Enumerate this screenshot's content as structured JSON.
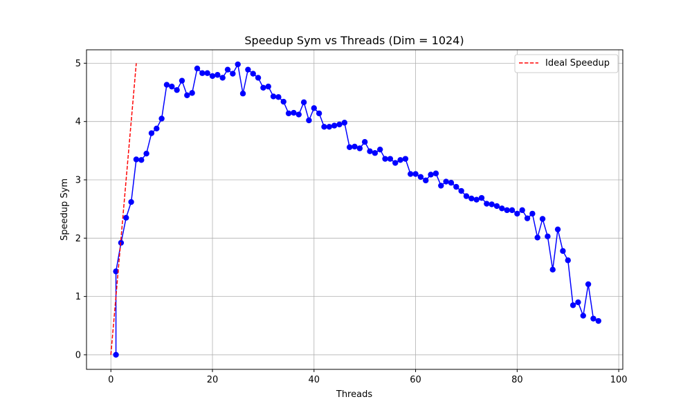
{
  "chart_data": {
    "type": "line",
    "title": "Speedup Sym vs Threads (Dim = 1024)",
    "xlabel": "Threads",
    "ylabel": "Speedup Sym",
    "xlim": [
      -4.8,
      100.8
    ],
    "ylim": [
      -0.25,
      5.23
    ],
    "xticks": [
      0,
      20,
      40,
      60,
      80,
      100
    ],
    "yticks": [
      0,
      1,
      2,
      3,
      4,
      5
    ],
    "grid": true,
    "legend_position": "top-right",
    "colors": {
      "measured": "#0000ff",
      "ideal": "#ff0000"
    },
    "series": [
      {
        "id": "measured",
        "x": [
          1,
          1,
          2,
          3,
          4,
          5,
          6,
          7,
          8,
          9,
          10,
          11,
          12,
          13,
          14,
          15,
          16,
          17,
          18,
          19,
          20,
          21,
          22,
          23,
          24,
          25,
          26,
          27,
          28,
          29,
          30,
          31,
          32,
          33,
          34,
          35,
          36,
          37,
          38,
          39,
          40,
          41,
          42,
          43,
          44,
          45,
          46,
          47,
          48,
          49,
          50,
          51,
          52,
          53,
          54,
          55,
          56,
          57,
          58,
          59,
          60,
          61,
          62,
          63,
          64,
          65,
          66,
          67,
          68,
          69,
          70,
          71,
          72,
          73,
          74,
          75,
          76,
          77,
          78,
          79,
          80,
          81,
          82,
          83,
          84,
          85,
          86,
          87,
          88,
          89,
          90,
          91,
          92,
          93,
          94,
          95,
          96
        ],
        "y": [
          0,
          1.43,
          1.92,
          2.35,
          2.62,
          3.35,
          3.34,
          3.45,
          3.8,
          3.88,
          4.05,
          4.63,
          4.6,
          4.54,
          4.7,
          4.45,
          4.49,
          4.91,
          4.83,
          4.83,
          4.78,
          4.8,
          4.75,
          4.89,
          4.82,
          4.98,
          4.48,
          4.89,
          4.82,
          4.75,
          4.58,
          4.6,
          4.43,
          4.42,
          4.34,
          4.14,
          4.15,
          4.12,
          4.33,
          4.02,
          4.23,
          4.14,
          3.91,
          3.91,
          3.93,
          3.95,
          3.98,
          3.56,
          3.57,
          3.54,
          3.65,
          3.49,
          3.46,
          3.52,
          3.36,
          3.36,
          3.29,
          3.34,
          3.36,
          3.1,
          3.1,
          3.05,
          2.99,
          3.09,
          3.11,
          2.9,
          2.97,
          2.95,
          2.88,
          2.81,
          2.72,
          2.68,
          2.66,
          2.69,
          2.59,
          2.58,
          2.55,
          2.51,
          2.48,
          2.48,
          2.42,
          2.48,
          2.34,
          2.42,
          2.01,
          2.33,
          2.03,
          1.46,
          2.15,
          1.78,
          1.62,
          0.85,
          0.9,
          0.67,
          1.21,
          0.62,
          0.58
        ]
      },
      {
        "id": "ideal",
        "name": "Ideal Speedup",
        "x": [
          0,
          5
        ],
        "y": [
          0,
          5
        ]
      }
    ]
  }
}
